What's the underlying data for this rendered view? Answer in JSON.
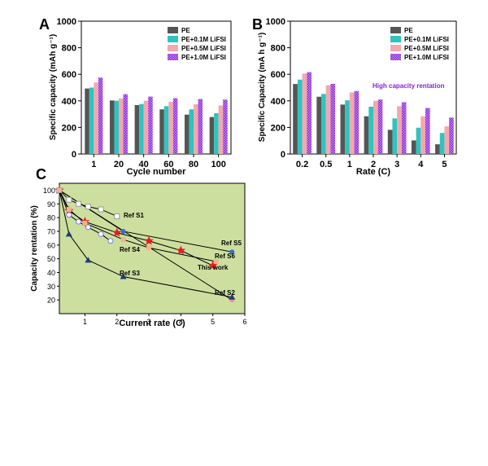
{
  "panels": {
    "A": "A",
    "B": "B",
    "C": "C"
  },
  "colors": {
    "PE": "#555555",
    "PE+0.1M LiFSI": "#2ec4c0",
    "PE+0.5M LiFSI": "#f4a8ad",
    "PE+1.0M LiFSI": "#8a1fd6",
    "panel_C_bg": "#ccdf9f",
    "annotation_purple": "#8a1fd6",
    "red": "#e02020",
    "navy": "#1f3a7a"
  },
  "chart_data": [
    {
      "panel": "A",
      "type": "bar",
      "categories": [
        "1",
        "20",
        "40",
        "60",
        "80",
        "100"
      ],
      "series": [
        {
          "name": "PE",
          "values": [
            493,
            403,
            368,
            336,
            296,
            278
          ]
        },
        {
          "name": "PE+0.1M LiFSI",
          "values": [
            500,
            401,
            376,
            360,
            336,
            307
          ]
        },
        {
          "name": "PE+0.5M LiFSI",
          "values": [
            538,
            418,
            401,
            392,
            374,
            366
          ]
        },
        {
          "name": "PE+1.0M LiFSI",
          "values": [
            575,
            450,
            432,
            420,
            414,
            410
          ]
        }
      ],
      "legend": [
        "PE",
        "PE+0.1M LiFSI",
        "PE+0.5M LiFSI",
        "PE+1.0M LiFSI"
      ],
      "xlabel": "Cycle number",
      "ylabel": "Specific capacity (mAh g⁻¹)",
      "ylim": [
        0,
        1000
      ],
      "yticks": [
        "0",
        "200",
        "400",
        "600",
        "800",
        "1000"
      ]
    },
    {
      "panel": "B",
      "type": "bar",
      "categories": [
        "0.2",
        "0.5",
        "1",
        "2",
        "3",
        "4",
        "5"
      ],
      "series": [
        {
          "name": "PE",
          "values": [
            527,
            431,
            372,
            284,
            182,
            102,
            73
          ]
        },
        {
          "name": "PE+0.1M LiFSI",
          "values": [
            560,
            452,
            404,
            356,
            268,
            198,
            158
          ]
        },
        {
          "name": "PE+0.5M LiFSI",
          "values": [
            606,
            518,
            464,
            400,
            360,
            284,
            208
          ]
        },
        {
          "name": "PE+1.0M LiFSI",
          "values": [
            616,
            528,
            474,
            410,
            390,
            346,
            274
          ]
        }
      ],
      "legend": [
        "PE",
        "PE+0.1M LiFSI",
        "PE+0.5M LiFSI",
        "PE+1.0M LiFSI"
      ],
      "annotation": "High capacity rentation",
      "xlabel": "Rate (C)",
      "ylabel": "Specific Capacity (mA h g⁻¹)",
      "ylim": [
        0,
        1000
      ],
      "yticks": [
        "0",
        "200",
        "400",
        "600",
        "800",
        "1000"
      ]
    },
    {
      "panel": "C",
      "type": "line",
      "xlabel": "Current rate (C)",
      "ylabel": "Capacity rentation (%)",
      "xlim": [
        0.2,
        6
      ],
      "ylim": [
        10,
        105
      ],
      "xticks": [
        "1",
        "2",
        "3",
        "4",
        "5",
        "6"
      ],
      "yticks": [
        "20",
        "30",
        "40",
        "50",
        "60",
        "70",
        "80",
        "90",
        "100"
      ],
      "series": [
        {
          "name": "This work",
          "marker": "star",
          "color": "#e02020",
          "x": [
            0.2,
            0.5,
            1,
            2,
            3,
            4,
            5
          ],
          "y": [
            100,
            85,
            77,
            69,
            63,
            56,
            45
          ]
        },
        {
          "name": "Ref S1",
          "marker": "square-open",
          "color": "#9a9a9a",
          "x": [
            0.2,
            0.5,
            0.8,
            1.1,
            1.5,
            2
          ],
          "y": [
            100,
            93,
            90,
            88,
            86,
            81
          ]
        },
        {
          "name": "Ref S2",
          "marker": "circle",
          "color": "#f08aa6",
          "x": [
            0.2,
            5.6
          ],
          "y": [
            100,
            20
          ]
        },
        {
          "name": "Ref S3",
          "marker": "triangle",
          "color": "#1f3a7a",
          "x": [
            0.2,
            0.5,
            1.1,
            2.2,
            5.6
          ],
          "y": [
            100,
            68,
            49,
            37,
            22
          ]
        },
        {
          "name": "Ref S4",
          "marker": "circle-open",
          "color": "#7a7ae0",
          "x": [
            0.2,
            0.5,
            0.8,
            1.1,
            1.5,
            1.8
          ],
          "y": [
            100,
            82,
            77,
            73,
            68,
            63
          ]
        },
        {
          "name": "Ref S5",
          "marker": "circle",
          "color": "#3a6bd6",
          "x": [
            0.2,
            2.2,
            5.6
          ],
          "y": [
            100,
            70,
            55
          ]
        },
        {
          "name": "Ref S6",
          "marker": "square",
          "color": "#f4b38a",
          "x": [
            0.2,
            0.5,
            1,
            2.2,
            3,
            5.1
          ],
          "y": [
            100,
            86,
            76,
            64,
            58,
            48
          ]
        }
      ],
      "labels": [
        "Ref S1",
        "Ref S2",
        "Ref S3",
        "Ref S4",
        "Ref S5",
        "Ref S6",
        "This work"
      ]
    }
  ]
}
